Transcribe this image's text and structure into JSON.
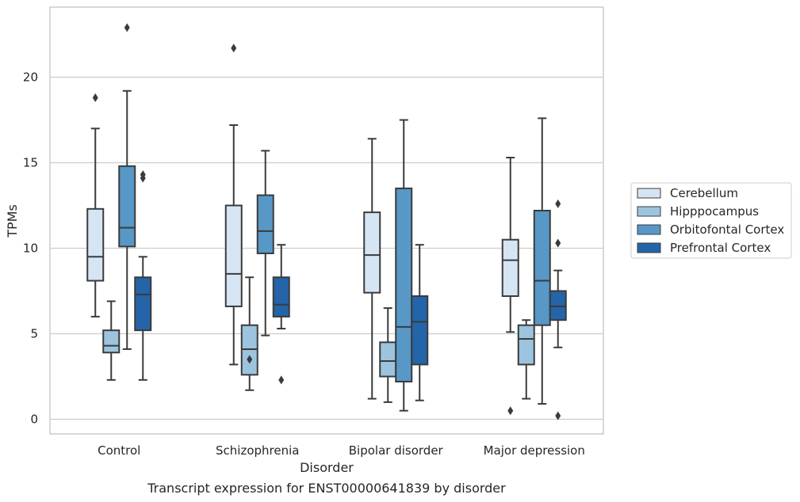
{
  "chart_data": {
    "type": "box",
    "caption": "Transcript expression for ENST00000641839 by disorder",
    "xlabel": "Disorder",
    "ylabel": "TPMs",
    "ylim": [
      -0.8,
      24.1
    ],
    "yticks": [
      0,
      5,
      10,
      15,
      20
    ],
    "grid": "horizontal",
    "legend_position": "right",
    "categories": [
      "Control",
      "Schizophrenia",
      "Bipolar disorder",
      "Major depression"
    ],
    "series": [
      {
        "name": "Cerebellum",
        "color": "#d6e5f4",
        "boxes": [
          {
            "whisker_low": 6.0,
            "q1": 8.1,
            "median": 9.5,
            "q3": 12.3,
            "whisker_high": 17.0,
            "outliers": [
              18.8
            ]
          },
          {
            "whisker_low": 3.2,
            "q1": 6.6,
            "median": 8.5,
            "q3": 12.5,
            "whisker_high": 17.2,
            "outliers": [
              21.7
            ]
          },
          {
            "whisker_low": 1.2,
            "q1": 7.4,
            "median": 9.6,
            "q3": 12.1,
            "whisker_high": 16.4,
            "outliers": []
          },
          {
            "whisker_low": 5.1,
            "q1": 7.2,
            "median": 9.3,
            "q3": 10.5,
            "whisker_high": 15.3,
            "outliers": [
              0.5
            ]
          }
        ]
      },
      {
        "name": "Hipppocampus",
        "color": "#9dc4de",
        "boxes": [
          {
            "whisker_low": 2.3,
            "q1": 3.9,
            "median": 4.3,
            "q3": 5.2,
            "whisker_high": 6.9,
            "outliers": []
          },
          {
            "whisker_low": 1.7,
            "q1": 2.6,
            "median": 4.1,
            "q3": 5.5,
            "whisker_high": 8.3,
            "outliers": [
              3.5
            ]
          },
          {
            "whisker_low": 1.0,
            "q1": 2.5,
            "median": 3.4,
            "q3": 4.5,
            "whisker_high": 6.5,
            "outliers": []
          },
          {
            "whisker_low": 1.2,
            "q1": 3.2,
            "median": 4.7,
            "q3": 5.5,
            "whisker_high": 5.8,
            "outliers": []
          }
        ]
      },
      {
        "name": "Orbitofontal Cortex",
        "color": "#5798c7",
        "boxes": [
          {
            "whisker_low": 4.1,
            "q1": 10.1,
            "median": 11.2,
            "q3": 14.8,
            "whisker_high": 19.2,
            "outliers": [
              22.9
            ]
          },
          {
            "whisker_low": 4.9,
            "q1": 9.7,
            "median": 11.0,
            "q3": 13.1,
            "whisker_high": 15.7,
            "outliers": []
          },
          {
            "whisker_low": 0.5,
            "q1": 2.2,
            "median": 5.4,
            "q3": 13.5,
            "whisker_high": 17.5,
            "outliers": []
          },
          {
            "whisker_low": 0.9,
            "q1": 5.5,
            "median": 8.1,
            "q3": 12.2,
            "whisker_high": 17.6,
            "outliers": []
          }
        ]
      },
      {
        "name": "Prefrontal Cortex",
        "color": "#2464a8",
        "boxes": [
          {
            "whisker_low": 2.3,
            "q1": 5.2,
            "median": 7.3,
            "q3": 8.3,
            "whisker_high": 9.5,
            "outliers": [
              14.1,
              14.3
            ]
          },
          {
            "whisker_low": 5.3,
            "q1": 6.0,
            "median": 6.7,
            "q3": 8.3,
            "whisker_high": 10.2,
            "outliers": [
              2.3
            ]
          },
          {
            "whisker_low": 1.1,
            "q1": 3.2,
            "median": 5.7,
            "q3": 7.2,
            "whisker_high": 10.2,
            "outliers": []
          },
          {
            "whisker_low": 4.2,
            "q1": 5.8,
            "median": 6.6,
            "q3": 7.5,
            "whisker_high": 8.7,
            "outliers": [
              12.6,
              10.3,
              0.2
            ]
          }
        ]
      }
    ]
  }
}
